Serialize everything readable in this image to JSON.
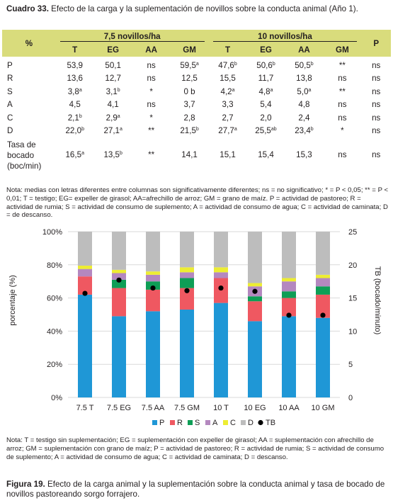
{
  "table": {
    "caption_label": "Cuadro 33.",
    "caption_text": "Efecto de la carga y la suplementación de novillos sobre la conducta animal (Año 1).",
    "corner_label": "%",
    "group1": "7,5 novillos/ha",
    "group2": "10 novillos/ha",
    "p_label": "P",
    "subcols": [
      "T",
      "EG",
      "AA",
      "GM",
      "T",
      "EG",
      "AA",
      "GM"
    ],
    "rows": [
      {
        "label": "P",
        "cells": [
          [
            "53,9",
            ""
          ],
          [
            "50,1",
            ""
          ],
          [
            "ns",
            ""
          ],
          [
            "59,5",
            "a"
          ],
          [
            "47,6",
            "b"
          ],
          [
            "50,6",
            "b"
          ],
          [
            "50,5",
            "b"
          ],
          [
            "**",
            ""
          ]
        ],
        "p": "ns"
      },
      {
        "label": "R",
        "cells": [
          [
            "13,6",
            ""
          ],
          [
            "12,7",
            ""
          ],
          [
            "ns",
            ""
          ],
          [
            "12,5",
            ""
          ],
          [
            "15,5",
            ""
          ],
          [
            "11,7",
            ""
          ],
          [
            "13,8",
            ""
          ],
          [
            "ns",
            ""
          ]
        ],
        "p": "ns"
      },
      {
        "label": "S",
        "cells": [
          [
            "3,8",
            "a"
          ],
          [
            "3,1",
            "b"
          ],
          [
            "*",
            ""
          ],
          [
            "0 b",
            ""
          ],
          [
            "4,2",
            "a"
          ],
          [
            "4,8",
            "a"
          ],
          [
            "5,0",
            "a"
          ],
          [
            "**",
            ""
          ]
        ],
        "p": "ns"
      },
      {
        "label": "A",
        "cells": [
          [
            "4,5",
            ""
          ],
          [
            "4,1",
            ""
          ],
          [
            "ns",
            ""
          ],
          [
            "3,7",
            ""
          ],
          [
            "3,3",
            ""
          ],
          [
            "5,4",
            ""
          ],
          [
            "4,8",
            ""
          ],
          [
            "ns",
            ""
          ]
        ],
        "p": "ns"
      },
      {
        "label": "C",
        "cells": [
          [
            "2,1",
            "b"
          ],
          [
            "2,9",
            "a"
          ],
          [
            "*",
            ""
          ],
          [
            "2,8",
            ""
          ],
          [
            "2,7",
            ""
          ],
          [
            "2,0",
            ""
          ],
          [
            "2,4",
            ""
          ],
          [
            "ns",
            ""
          ]
        ],
        "p": "ns"
      },
      {
        "label": "D",
        "cells": [
          [
            "22,0",
            "b"
          ],
          [
            "27,1",
            "a"
          ],
          [
            "**",
            ""
          ],
          [
            "21,5",
            "b"
          ],
          [
            "27,7",
            "a"
          ],
          [
            "25,5",
            "ab"
          ],
          [
            "23,4",
            "b"
          ],
          [
            "*",
            ""
          ]
        ],
        "p": "ns"
      },
      {
        "label": "Tasa de bocado (boc/min)",
        "cells": [
          [
            "16,5",
            "a"
          ],
          [
            "13,5",
            "b"
          ],
          [
            "**",
            ""
          ],
          [
            "14,1",
            ""
          ],
          [
            "15,1",
            ""
          ],
          [
            "15,4",
            ""
          ],
          [
            "15,3",
            ""
          ],
          [
            "ns",
            ""
          ]
        ],
        "p": "ns"
      }
    ],
    "note": "Nota: medias con letras diferentes entre columnas son significativamente diferentes; ns = no significativo; * = P < 0,05; ** = P < 0,01; T = testigo; EG= expeller de girasol; AA=afrechillo de arroz; GM = grano de maíz. P = actividad de pastoreo; R = actividad de rumia; S = actividad de consumo de suplemento; A = actividad de consumo de agua; C = actividad de caminata; D = de descanso."
  },
  "chart_data": {
    "type": "bar",
    "stacked": true,
    "categories": [
      "7.5 T",
      "7.5 EG",
      "7.5 AA",
      "7.5 GM",
      "10 T",
      "10 EG",
      "10 AA",
      "10 GM"
    ],
    "ylabel": "porcentaje (%)",
    "y2label": "TB (bocado/minuto)",
    "ylim": [
      0,
      100
    ],
    "y2lim": [
      0,
      25
    ],
    "yticks": [
      "0%",
      "20%",
      "40%",
      "60%",
      "80%",
      "100%"
    ],
    "y2ticks": [
      "0",
      "5",
      "10",
      "15",
      "20",
      "25"
    ],
    "grid": true,
    "legend_position": "bottom",
    "series": [
      {
        "name": "P",
        "color": "#1f97d6",
        "values": [
          62,
          49,
          52,
          53,
          57,
          46,
          49,
          48
        ]
      },
      {
        "name": "R",
        "color": "#ef5861",
        "values": [
          11,
          17,
          13,
          13,
          15,
          12,
          11,
          14
        ]
      },
      {
        "name": "S",
        "color": "#0e9e56",
        "values": [
          0,
          5,
          5,
          6,
          0,
          3,
          4,
          5
        ]
      },
      {
        "name": "A",
        "color": "#b488bf",
        "values": [
          4.5,
          4,
          4,
          3.5,
          3.5,
          6,
          6,
          5
        ]
      },
      {
        "name": "C",
        "color": "#eded32",
        "values": [
          2,
          2,
          2,
          3,
          3,
          2,
          2,
          2
        ]
      },
      {
        "name": "D",
        "color": "#bdbdbd",
        "values": [
          20.5,
          23,
          24,
          21.5,
          21.5,
          31,
          28,
          26
        ]
      }
    ],
    "tb_series": {
      "name": "TB",
      "color": "#000000",
      "axis": "right",
      "values": [
        15.7,
        17.7,
        16.5,
        16.1,
        16.5,
        16.0,
        12.4,
        12.4
      ]
    }
  },
  "figure_note": "Nota: T = testigo sin suplementación; EG = suplementación con expeller de girasol; AA = suplementación con afrechillo de arroz; GM = suplementación con grano de maíz; P = actividad de pastoreo; R = actividad de rumia; S = actividad de consumo de suplemento; A = actividad de consumo de agua; C = actividad de caminata; D = descanso.",
  "figure_caption": {
    "label": "Figura 19.",
    "text": "Efecto de la carga animal y la suplementación sobre la conducta animal y tasa de bocado de novillos pastoreando sorgo forrajero."
  }
}
